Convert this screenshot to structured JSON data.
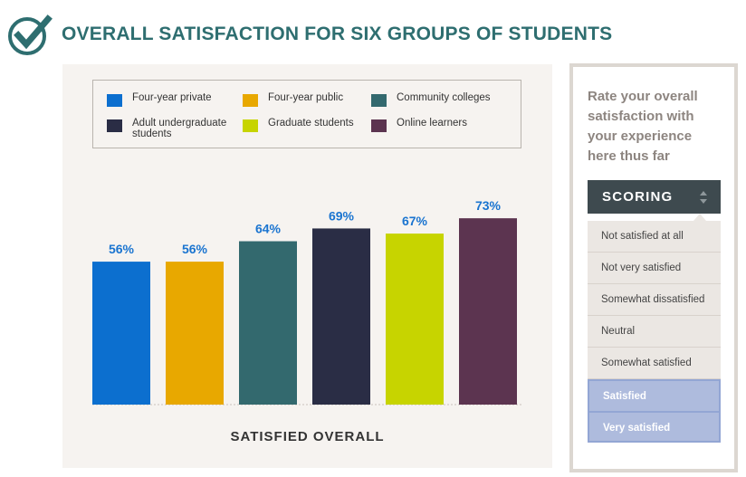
{
  "header": {
    "title": "OVERALL SATISFACTION FOR SIX GROUPS OF STUDENTS",
    "icon": "check-circle-icon"
  },
  "colors": {
    "four_year_private": "#0c6fcf",
    "four_year_public": "#e8a800",
    "community_colleges": "#33696e",
    "adult_undergraduate": "#2a2d45",
    "graduate_students": "#c7d400",
    "online_learners": "#5c3450"
  },
  "chart_data": {
    "type": "bar",
    "title": "OVERALL SATISFACTION FOR SIX GROUPS OF STUDENTS",
    "xlabel": "SATISFIED OVERALL",
    "ylabel": "",
    "ylim": [
      0,
      100
    ],
    "categories": [
      "Four-year private",
      "Four-year public",
      "Community colleges",
      "Adult undergraduate students",
      "Graduate students",
      "Online learners"
    ],
    "values": [
      56,
      56,
      64,
      69,
      67,
      73
    ],
    "value_labels": [
      "56%",
      "56%",
      "64%",
      "69%",
      "67%",
      "73%"
    ],
    "legend": [
      "Four-year private",
      "Four-year public",
      "Community colleges",
      "Adult undergraduate students",
      "Graduate students",
      "Online learners"
    ],
    "legend_position": "top",
    "grid": false
  },
  "side_panel": {
    "prompt": "Rate your overall satisfaction with your experience here thus far",
    "scoring_label": "SCORING",
    "options": [
      "Not satisfied at all",
      "Not very satisfied",
      "Somewhat dissatisfied",
      "Neutral",
      "Somewhat satisfied",
      "Satisfied",
      "Very satisfied"
    ],
    "selected": [
      "Satisfied",
      "Very satisfied"
    ]
  }
}
